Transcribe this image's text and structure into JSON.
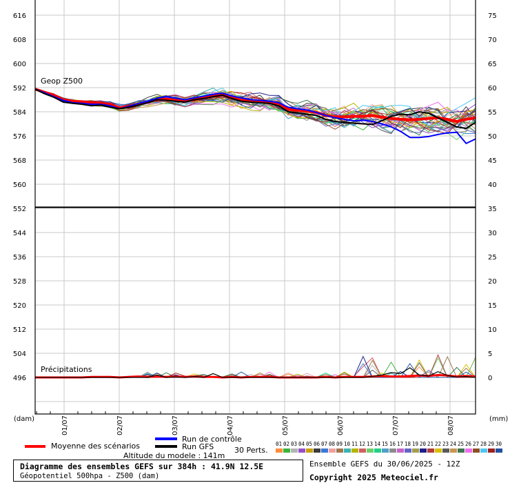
{
  "colors": {
    "mean": "#ff0000",
    "control": "#0000ff",
    "gfs": "#000000",
    "grid": "#c8c8c8"
  },
  "chart_data": {
    "type": "line",
    "top_panel": {
      "label": "Geop Z500",
      "left_ticks": [
        "616",
        "608",
        "600",
        "592",
        "584",
        "576",
        "568",
        "560",
        "552"
      ],
      "right_ticks": [
        "75",
        "70",
        "65",
        "60",
        "55",
        "50",
        "45",
        "40",
        "35"
      ],
      "ylim": [
        552,
        620
      ],
      "series": [
        {
          "name": "Moyenne des scénarios",
          "color": "#ff0000",
          "values": [
            591.5,
            590.5,
            589.5,
            588.0,
            587.5,
            587.3,
            587.0,
            586.8,
            586.5,
            585.3,
            585.8,
            586.5,
            587.3,
            588.0,
            588.2,
            587.8,
            587.5,
            588.0,
            588.6,
            589.2,
            589.5,
            588.6,
            587.8,
            587.5,
            587.3,
            587.0,
            586.8,
            584.8,
            584.5,
            584.2,
            583.8,
            582.8,
            582.3,
            582.3,
            582.5,
            582.5,
            582.8,
            582.2,
            581.8,
            581.5,
            581.3,
            581.5,
            581.8,
            582.0,
            581.5,
            580.8,
            581.5,
            582.0
          ]
        },
        {
          "name": "Run de contrôle",
          "color": "#0000ff",
          "values": [
            591.5,
            590.3,
            589.0,
            587.8,
            587.0,
            586.8,
            586.5,
            586.5,
            586.0,
            585.0,
            585.8,
            586.8,
            587.5,
            588.5,
            589.0,
            588.5,
            588.0,
            588.6,
            589.2,
            589.8,
            590.2,
            589.2,
            588.6,
            588.0,
            587.8,
            587.5,
            587.0,
            585.5,
            585.0,
            584.6,
            583.8,
            582.8,
            582.0,
            581.5,
            581.0,
            581.2,
            580.8,
            580.0,
            579.0,
            577.5,
            575.5,
            575.5,
            575.8,
            576.5,
            577.0,
            577.2,
            573.5,
            575.0
          ]
        },
        {
          "name": "Run GFS",
          "color": "#000000",
          "values": [
            591.5,
            590.0,
            588.8,
            587.2,
            586.8,
            586.5,
            586.0,
            586.2,
            585.5,
            585.0,
            585.5,
            586.2,
            587.0,
            588.0,
            587.8,
            587.5,
            587.2,
            588.0,
            588.4,
            589.0,
            589.5,
            588.4,
            587.5,
            587.2,
            587.0,
            586.8,
            586.0,
            584.0,
            583.6,
            583.2,
            582.8,
            581.5,
            580.8,
            580.5,
            580.2,
            580.0,
            579.8,
            581.0,
            582.5,
            583.2,
            583.0,
            584.0,
            583.5,
            582.0,
            580.5,
            579.0,
            578.5,
            580.5
          ]
        }
      ]
    },
    "bottom_panel": {
      "label": "Précipitations",
      "left_ticks": [
        "544",
        "536",
        "528",
        "520",
        "512",
        "504",
        "496"
      ],
      "right_ticks": [
        "30",
        "25",
        "20",
        "15",
        "10",
        "5",
        "0"
      ],
      "left_axis_unit": "(dam)",
      "right_axis_unit": "(mm)",
      "ylim_mm": [
        -2,
        35
      ],
      "series": [
        {
          "name": "Moyenne des scénarios",
          "color": "#ff0000",
          "values": [
            0,
            0,
            0,
            0,
            0,
            0,
            0.1,
            0.1,
            0.1,
            0,
            0.1,
            0.2,
            0.1,
            0.2,
            0.1,
            0.2,
            0.1,
            0.2,
            0.1,
            0.1,
            0,
            0.1,
            0,
            0.1,
            0.1,
            0.1,
            0,
            0,
            0,
            0,
            0,
            0.1,
            0,
            0.1,
            0.1,
            0.1,
            0.2,
            0.3,
            0.2,
            0.2,
            0.3,
            0.4,
            0.3,
            0.5,
            0.4,
            0.2,
            0.3,
            0.2
          ]
        },
        {
          "name": "Run GFS",
          "color": "#000000",
          "values": [
            0,
            0,
            0,
            0,
            0,
            0,
            0,
            0,
            0,
            0,
            0,
            0,
            0,
            0.5,
            0,
            0.1,
            0,
            0.2,
            0,
            0.8,
            0,
            0,
            0,
            0,
            0,
            0,
            0,
            0,
            0,
            0,
            0,
            0,
            0,
            0,
            0,
            0,
            0.2,
            0.5,
            1.0,
            0.8,
            2.0,
            0.5,
            0.3,
            1.2,
            0.4,
            0.1,
            0.2,
            0
          ]
        }
      ]
    },
    "x_ticks": [
      "01/07",
      "02/07",
      "03/07",
      "04/07",
      "05/07",
      "06/07",
      "07/07",
      "08/07"
    ],
    "perturbations_label": "30 Perts.",
    "perturbation_numbers": [
      "01",
      "02",
      "03",
      "04",
      "05",
      "06",
      "07",
      "08",
      "09",
      "10",
      "11",
      "12",
      "13",
      "14",
      "15",
      "16",
      "17",
      "18",
      "19",
      "20",
      "21",
      "22",
      "23",
      "24",
      "25",
      "26",
      "27",
      "28",
      "29",
      "30"
    ],
    "perturbation_colors": [
      "#ff8c3c",
      "#3cb43c",
      "#b4b4b4",
      "#9650c8",
      "#c8a000",
      "#3c3c3c",
      "#3c78d8",
      "#f0a0a0",
      "#a07850",
      "#3cb4b4",
      "#b4b400",
      "#d06060",
      "#6ccf6c",
      "#23d088",
      "#50a0c8",
      "#8c8c8c",
      "#c864c8",
      "#6464c8",
      "#a0a050",
      "#1e1e8c",
      "#b43c3c",
      "#d8c000",
      "#5a5a5a",
      "#c89650",
      "#3c7850",
      "#f06ef0",
      "#8c5028",
      "#50c8f0",
      "#a02020",
      "#2050a0"
    ]
  },
  "legend": {
    "mean": "Moyenne des scénarios",
    "control": "Run de contrôle",
    "gfs": "Run GFS",
    "perts": "30 Perts.",
    "altitude": "Altitude du modele : 141m"
  },
  "footer": {
    "title": "Diagramme des ensembles GEFS sur 384h : 41.9N 12.5E",
    "subtitle": "Géopotentiel 500hpa - Z500 (dam)",
    "run": "Ensemble GEFS du 30/06/2025 - 12Z",
    "copyright": "Copyright 2025 Meteociel.fr"
  }
}
